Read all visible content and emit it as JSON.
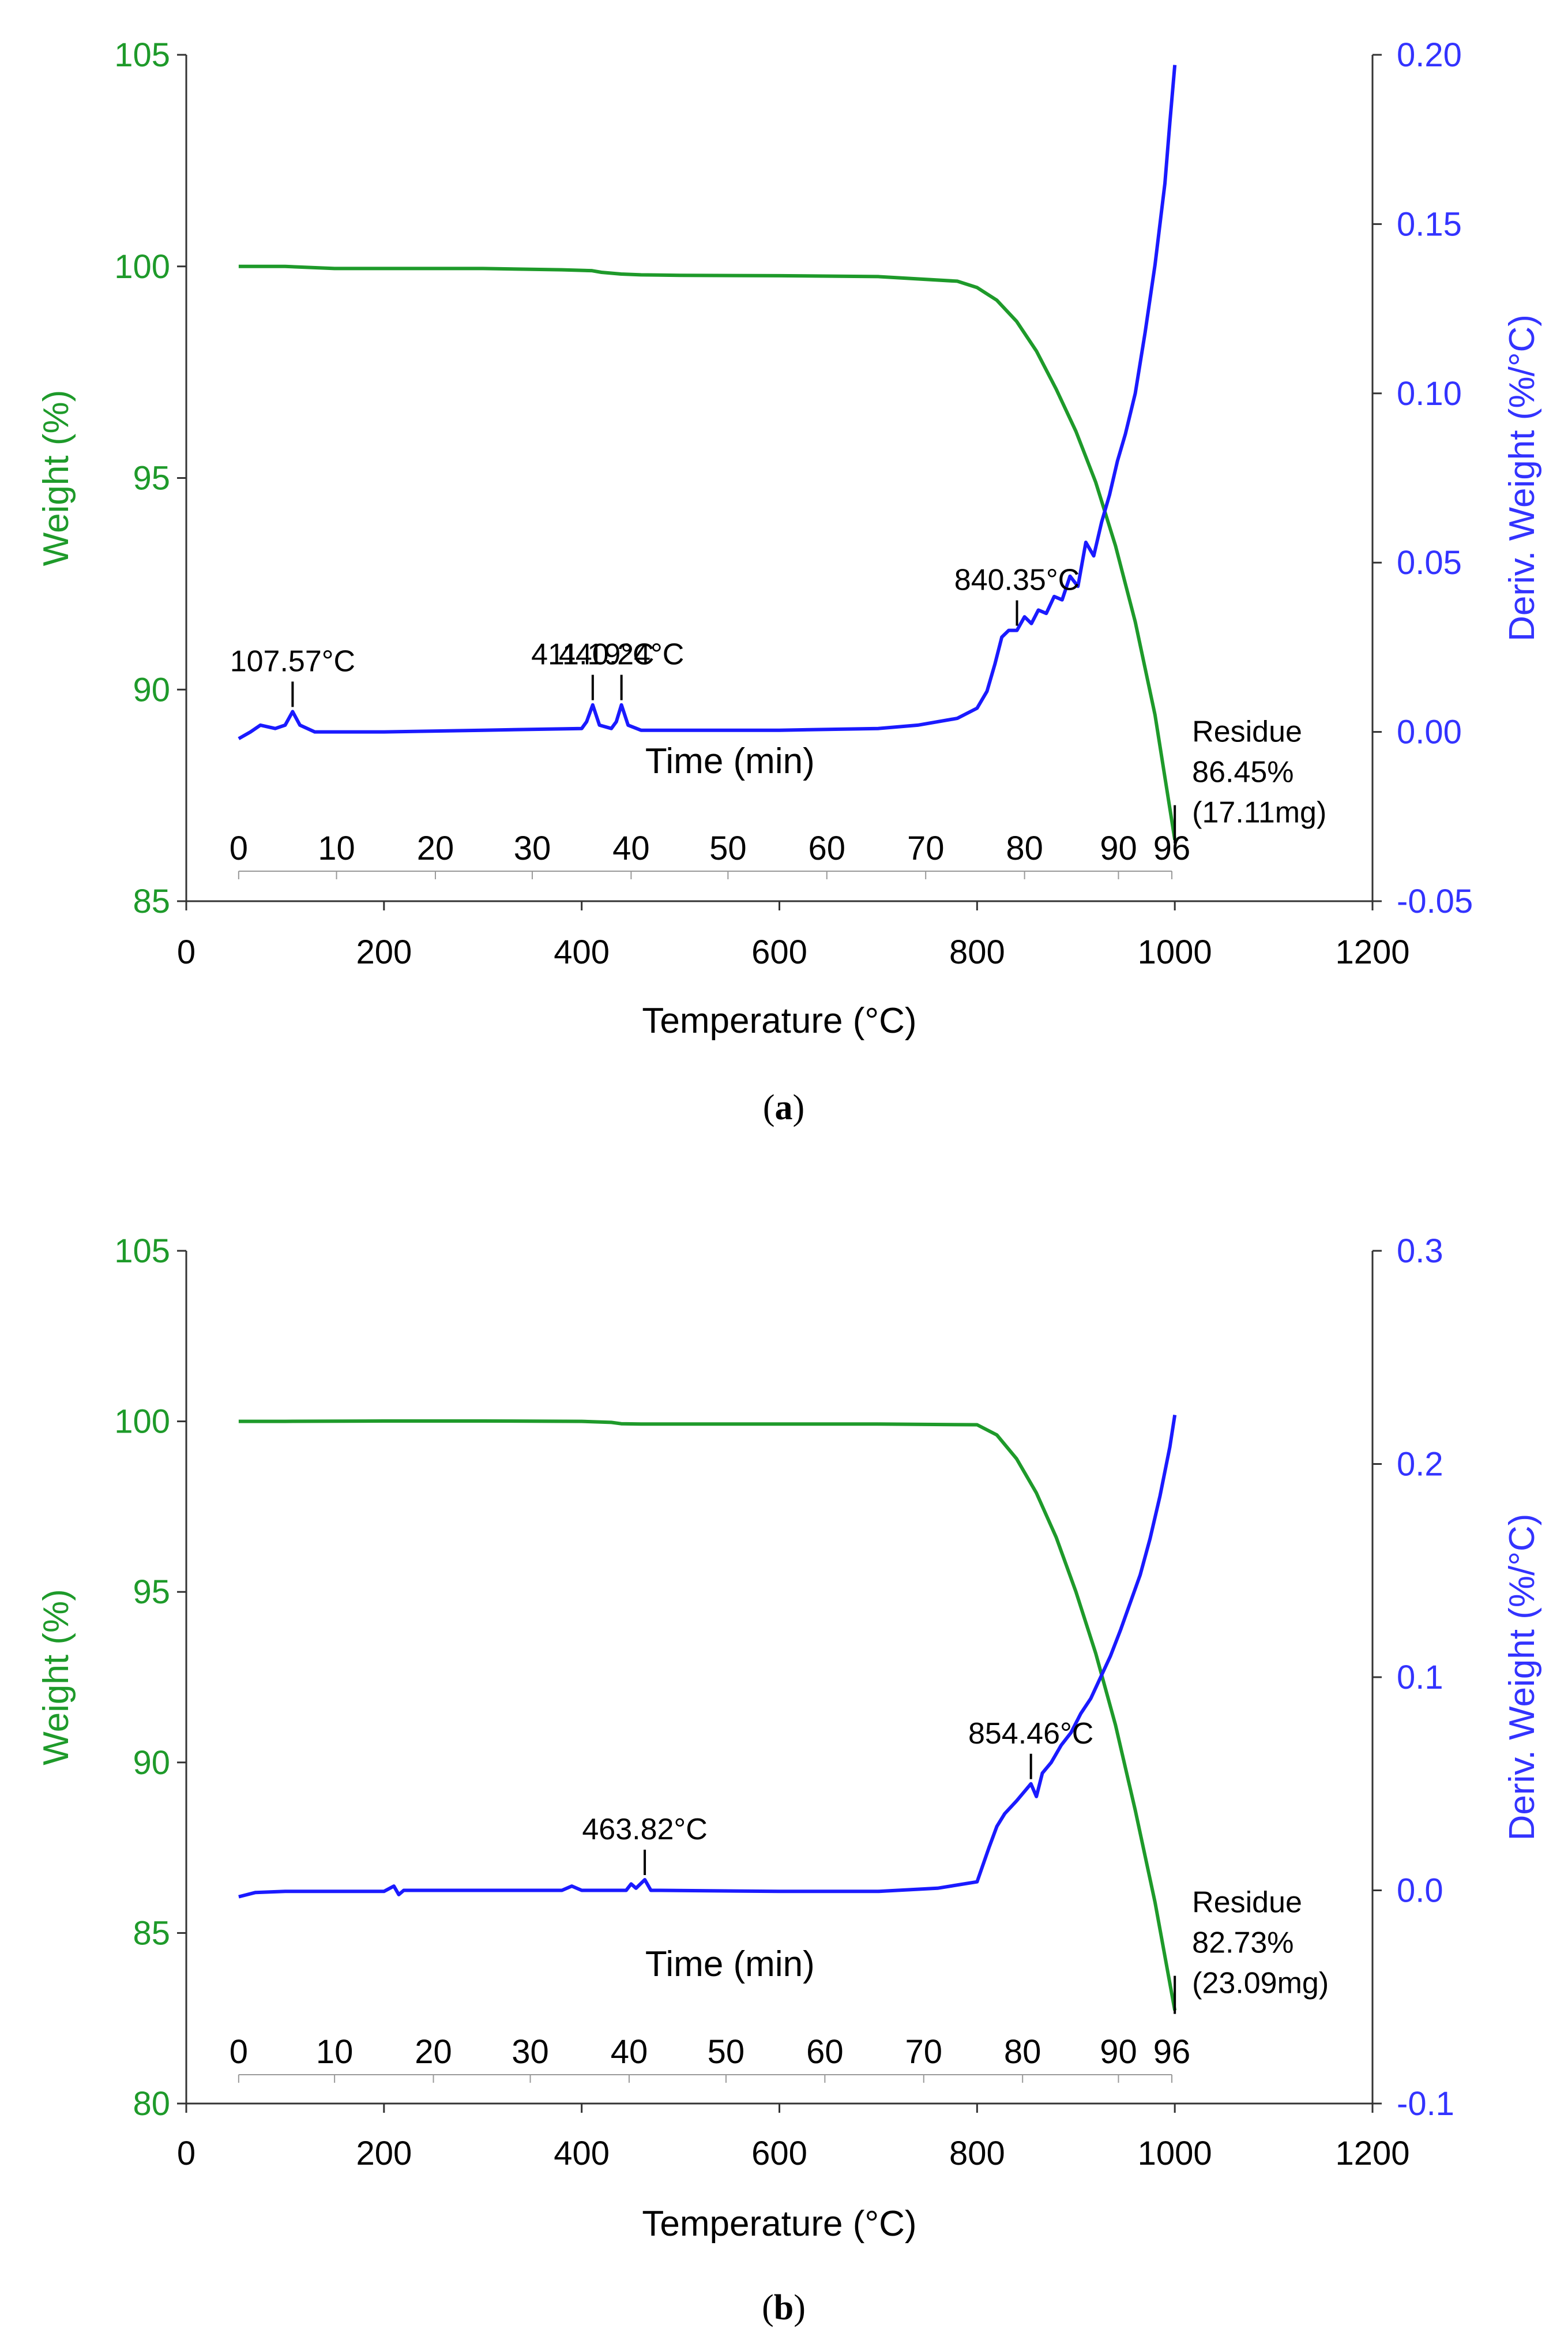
{
  "colors": {
    "weight": "#1e9a2a",
    "deriv": "#1a1aff",
    "axis": "#000000",
    "left_axis_text": "#1e9a2a",
    "right_axis_text": "#3333ff"
  },
  "chart_data": [
    {
      "type": "line",
      "panel_label": "a",
      "xlabel": "Temperature (°C)",
      "ylabel_left": "Weight (%)",
      "ylabel_right": "Deriv. Weight (%/°C)",
      "time_label": "Time (min)",
      "xlim": [
        0,
        1200
      ],
      "xticks": [
        0,
        200,
        400,
        600,
        800,
        1000,
        1200
      ],
      "ylim_left": [
        85,
        105
      ],
      "yticks_left": [
        85,
        90,
        95,
        100,
        105
      ],
      "ylim_right": [
        -0.05,
        0.2
      ],
      "yticks_right": [
        "-0.05",
        "0.00",
        "0.05",
        "0.10",
        "0.15",
        "0.20"
      ],
      "time_ticks": [
        {
          "label": "0",
          "temp": 53
        },
        {
          "label": "10",
          "temp": 152
        },
        {
          "label": "20",
          "temp": 252
        },
        {
          "label": "30",
          "temp": 350
        },
        {
          "label": "40",
          "temp": 450
        },
        {
          "label": "50",
          "temp": 548
        },
        {
          "label": "60",
          "temp": 648
        },
        {
          "label": "70",
          "temp": 748
        },
        {
          "label": "80",
          "temp": 848
        },
        {
          "label": "90",
          "temp": 943
        },
        {
          "label": "96",
          "temp": 997
        }
      ],
      "series": [
        {
          "name": "Weight (%)",
          "axis": "left",
          "x": [
            53,
            100,
            150,
            200,
            300,
            380,
            410,
            420,
            440,
            460,
            500,
            600,
            700,
            780,
            800,
            820,
            840,
            860,
            880,
            900,
            920,
            940,
            960,
            980,
            1000
          ],
          "y": [
            100.0,
            100.0,
            99.95,
            99.95,
            99.95,
            99.92,
            99.9,
            99.86,
            99.82,
            99.8,
            99.79,
            99.78,
            99.76,
            99.65,
            99.5,
            99.2,
            98.7,
            98.0,
            97.1,
            96.1,
            94.9,
            93.4,
            91.6,
            89.4,
            86.45
          ]
        },
        {
          "name": "Deriv. Weight (%/°C)",
          "axis": "right",
          "x": [
            53,
            65,
            75,
            90,
            100,
            107.57,
            115,
            130,
            200,
            300,
            400,
            405,
            411.19,
            418,
            430,
            435,
            440.24,
            447,
            460,
            500,
            600,
            700,
            740,
            780,
            800,
            810,
            818,
            825,
            832,
            840.35,
            848,
            855,
            862,
            870,
            878,
            886,
            894,
            902,
            910,
            918,
            926,
            934,
            942,
            950,
            960,
            970,
            980,
            990,
            995,
            1000
          ],
          "y": [
            -0.002,
            0.0,
            0.002,
            0.001,
            0.002,
            0.006,
            0.002,
            0.0,
            0.0,
            0.0005,
            0.001,
            0.003,
            0.008,
            0.002,
            0.001,
            0.003,
            0.008,
            0.002,
            0.0005,
            0.0005,
            0.0005,
            0.001,
            0.002,
            0.004,
            0.007,
            0.012,
            0.02,
            0.028,
            0.03,
            0.03,
            0.034,
            0.032,
            0.036,
            0.035,
            0.04,
            0.039,
            0.046,
            0.043,
            0.056,
            0.052,
            0.062,
            0.07,
            0.08,
            0.088,
            0.1,
            0.118,
            0.138,
            0.162,
            0.18,
            0.197
          ]
        }
      ],
      "annotations": [
        {
          "text": "107.57°C",
          "temp": 107.57
        },
        {
          "text": "411.19°C",
          "temp": 411.19
        },
        {
          "text": "440.24°C",
          "temp": 440.24
        },
        {
          "text": "840.35°C",
          "temp": 840.35
        }
      ],
      "residue": {
        "line1": "Residue",
        "line2": "86.45%",
        "line3": "(17.11mg)",
        "temp": 1000,
        "weight": 86.45
      }
    },
    {
      "type": "line",
      "panel_label": "b",
      "xlabel": "Temperature (°C)",
      "ylabel_left": "Weight (%)",
      "ylabel_right": "Deriv. Weight (%/°C)",
      "time_label": "Time (min)",
      "xlim": [
        0,
        1200
      ],
      "xticks": [
        0,
        200,
        400,
        600,
        800,
        1000,
        1200
      ],
      "ylim_left": [
        80,
        105
      ],
      "yticks_left": [
        80,
        85,
        90,
        95,
        100,
        105
      ],
      "ylim_right": [
        -0.1,
        0.3
      ],
      "yticks_right": [
        "-0.1",
        "0.0",
        "0.1",
        "0.2",
        "0.3"
      ],
      "time_ticks": [
        {
          "label": "0",
          "temp": 53
        },
        {
          "label": "10",
          "temp": 150
        },
        {
          "label": "20",
          "temp": 250
        },
        {
          "label": "30",
          "temp": 348
        },
        {
          "label": "40",
          "temp": 448
        },
        {
          "label": "50",
          "temp": 546
        },
        {
          "label": "60",
          "temp": 646
        },
        {
          "label": "70",
          "temp": 746
        },
        {
          "label": "80",
          "temp": 846
        },
        {
          "label": "90",
          "temp": 943
        },
        {
          "label": "96",
          "temp": 997
        }
      ],
      "series": [
        {
          "name": "Weight (%)",
          "axis": "left",
          "x": [
            53,
            100,
            200,
            300,
            400,
            430,
            440,
            460,
            500,
            600,
            700,
            800,
            820,
            840,
            860,
            880,
            900,
            920,
            940,
            960,
            980,
            1000
          ],
          "y": [
            100.0,
            100.0,
            100.01,
            100.01,
            100.0,
            99.97,
            99.93,
            99.92,
            99.92,
            99.92,
            99.92,
            99.9,
            99.6,
            98.9,
            97.9,
            96.6,
            95.0,
            93.2,
            91.1,
            88.6,
            85.9,
            82.73
          ]
        },
        {
          "name": "Deriv. Weight (%/°C)",
          "axis": "right",
          "x": [
            53,
            70,
            100,
            200,
            210,
            215,
            220,
            230,
            300,
            380,
            390,
            400,
            445,
            450,
            455,
            463.82,
            470,
            480,
            600,
            700,
            760,
            800,
            812,
            820,
            828,
            840,
            854.46,
            860,
            866,
            875,
            885,
            895,
            905,
            915,
            925,
            935,
            945,
            955,
            965,
            975,
            985,
            995,
            1000
          ],
          "y": [
            -0.003,
            -0.001,
            -0.0005,
            -0.0005,
            0.002,
            -0.002,
            0.0,
            0.0,
            0.0,
            0.0,
            0.002,
            0.0,
            0.0,
            0.003,
            0.001,
            0.005,
            0.0,
            0.0,
            -0.0005,
            -0.0005,
            0.001,
            0.004,
            0.02,
            0.03,
            0.036,
            0.042,
            0.05,
            0.044,
            0.055,
            0.06,
            0.068,
            0.074,
            0.083,
            0.09,
            0.1,
            0.11,
            0.122,
            0.135,
            0.148,
            0.165,
            0.185,
            0.208,
            0.223
          ]
        }
      ],
      "annotations": [
        {
          "text": "463.82°C",
          "temp": 463.82
        },
        {
          "text": "854.46°C",
          "temp": 854.46
        }
      ],
      "residue": {
        "line1": "Residue",
        "line2": "82.73%",
        "line3": "(23.09mg)",
        "temp": 1000,
        "weight": 82.73
      }
    }
  ]
}
